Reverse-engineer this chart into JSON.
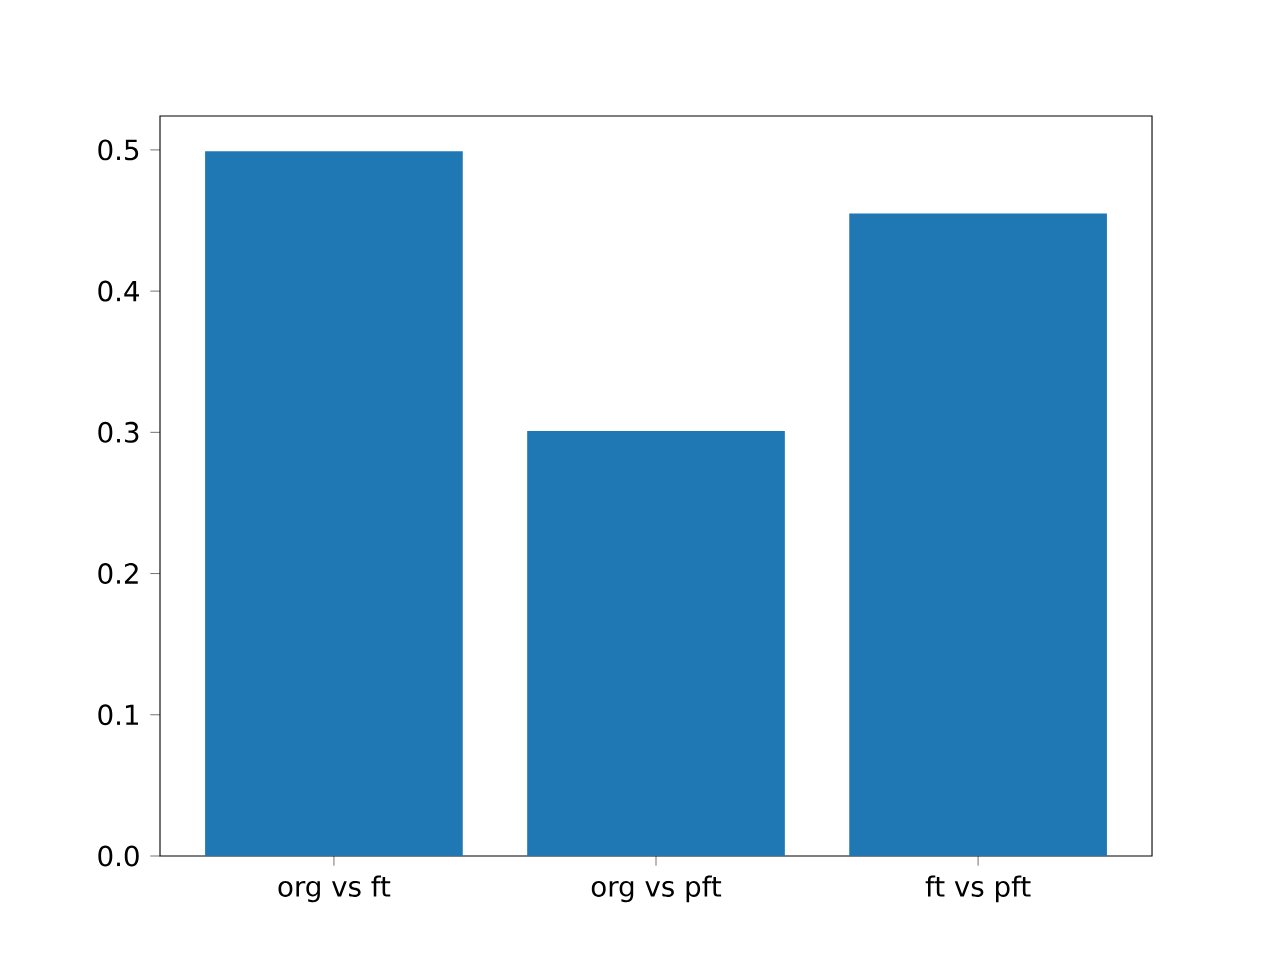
{
  "chart_data": {
    "type": "bar",
    "categories": [
      "org vs ft",
      "org vs pft",
      "ft vs pft"
    ],
    "values": [
      0.499,
      0.301,
      0.455
    ],
    "color": "#1f77b4",
    "ylim": [
      0,
      0.524
    ],
    "yticks": [
      {
        "value": 0,
        "label": "0.0"
      },
      {
        "value": 0.1,
        "label": "0.1"
      },
      {
        "value": 0.2,
        "label": "0.2"
      },
      {
        "value": 0.3,
        "label": "0.3"
      },
      {
        "value": 0.4,
        "label": "0.4"
      },
      {
        "value": 0.5,
        "label": "0.5"
      }
    ],
    "grid": false
  }
}
